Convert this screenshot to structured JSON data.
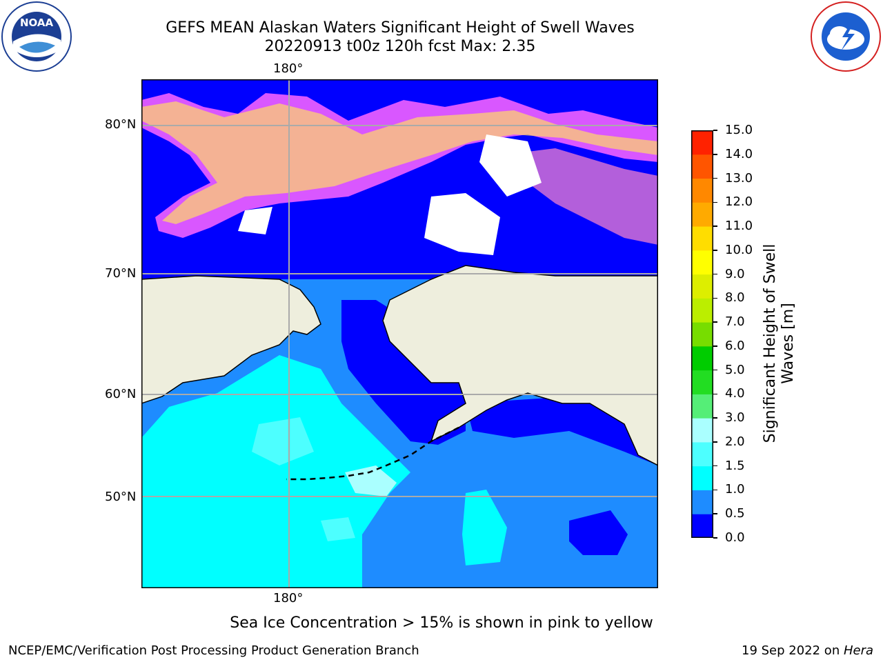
{
  "header": {
    "title_line1": "GEFS MEAN Alaskan Waters Significant Height of Swell Waves",
    "title_line2": "20220913 t00z 120h fcst   Max: 2.35"
  },
  "logos": {
    "left": {
      "icon": "noaa-logo",
      "text": "NOAA"
    },
    "right": {
      "icon": "national-weather-service-logo"
    }
  },
  "map": {
    "longitude_label_top": "180°",
    "longitude_label_bottom": "180°",
    "latitude_labels": [
      "80°N",
      "70°N",
      "60°N",
      "50°N"
    ],
    "colors": {
      "land": "#eeeedd",
      "deep_water_0_0_5": "#0000ff",
      "water_0_5_1_0": "#1e8cff",
      "water_1_0_1_5": "#00ffff",
      "water_1_5_2_0": "#4dffff",
      "water_2_0_2_5": "#aaffff",
      "ice_pink": "#ff66ff",
      "ice_yellow": "#ffd966",
      "gridline": "#aaaaaa"
    }
  },
  "colorbar": {
    "title_line1": "Significant Height of Swell",
    "title_line2": "Waves [m]",
    "ticks": [
      "0.0",
      "0.5",
      "1.0",
      "1.5",
      "2.0",
      "3.0",
      "4.0",
      "5.0",
      "6.0",
      "7.0",
      "8.0",
      "9.0",
      "10.0",
      "11.0",
      "12.0",
      "13.0",
      "14.0",
      "15.0"
    ],
    "colors": [
      "#0000ff",
      "#1e8cff",
      "#00ffff",
      "#4dffff",
      "#aaffff",
      "#55ee77",
      "#22dd22",
      "#00cc00",
      "#77dd00",
      "#bbee00",
      "#ddee00",
      "#ffff00",
      "#ffdd00",
      "#ffaa00",
      "#ff8800",
      "#ff5500",
      "#ff2200"
    ]
  },
  "note": "Sea Ice Concentration > 15% is shown in pink to yellow",
  "footer": {
    "left": "NCEP/EMC/Verification Post Processing Product Generation Branch",
    "right_prefix": "19 Sep 2022 on ",
    "right_host": "Hera"
  }
}
